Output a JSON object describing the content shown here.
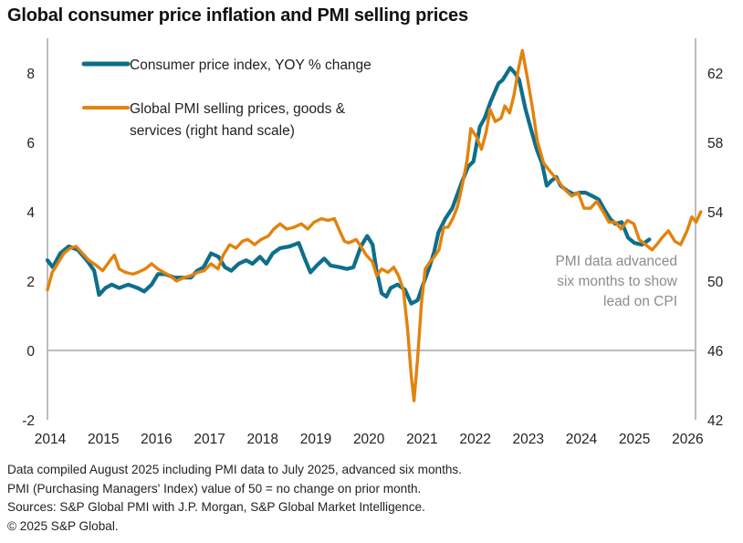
{
  "chart_data": {
    "type": "line",
    "title": "Global consumer price inflation and PMI selling prices",
    "xlabel": "",
    "ylabel_left": "",
    "ylabel_right": "",
    "x_ticks": [
      "2014",
      "2015",
      "2016",
      "2017",
      "2018",
      "2019",
      "2020",
      "2021",
      "2022",
      "2023",
      "2024",
      "2025",
      "2026"
    ],
    "x_range": [
      2014.0,
      2026.2
    ],
    "y_left_range": [
      -2,
      9
    ],
    "y_left_ticks": [
      "-2",
      "0",
      "2",
      "4",
      "6",
      "8"
    ],
    "y_right_range": [
      42,
      64
    ],
    "y_right_ticks": [
      "42",
      "46",
      "50",
      "54",
      "58",
      "62"
    ],
    "grid": false,
    "legend_placement": "top-left",
    "series": [
      {
        "name": "Consumer price index, YOY % change",
        "axis": "left",
        "color": "#0E6F8A",
        "points": [
          [
            2014.0,
            2.6
          ],
          [
            2014.1,
            2.4
          ],
          [
            2014.24,
            2.8
          ],
          [
            2014.4,
            3.0
          ],
          [
            2014.57,
            2.9
          ],
          [
            2014.74,
            2.6
          ],
          [
            2014.88,
            2.3
          ],
          [
            2014.97,
            1.6
          ],
          [
            2015.09,
            1.8
          ],
          [
            2015.21,
            1.9
          ],
          [
            2015.35,
            1.8
          ],
          [
            2015.52,
            1.9
          ],
          [
            2015.7,
            1.8
          ],
          [
            2015.82,
            1.7
          ],
          [
            2015.96,
            1.9
          ],
          [
            2016.08,
            2.2
          ],
          [
            2016.22,
            2.2
          ],
          [
            2016.39,
            2.1
          ],
          [
            2016.56,
            2.1
          ],
          [
            2016.7,
            2.1
          ],
          [
            2016.82,
            2.3
          ],
          [
            2016.94,
            2.4
          ],
          [
            2017.08,
            2.8
          ],
          [
            2017.22,
            2.7
          ],
          [
            2017.34,
            2.4
          ],
          [
            2017.46,
            2.3
          ],
          [
            2017.6,
            2.5
          ],
          [
            2017.74,
            2.6
          ],
          [
            2017.86,
            2.5
          ],
          [
            2018.0,
            2.7
          ],
          [
            2018.12,
            2.5
          ],
          [
            2018.24,
            2.8
          ],
          [
            2018.38,
            2.95
          ],
          [
            2018.56,
            3.0
          ],
          [
            2018.73,
            3.1
          ],
          [
            2018.83,
            2.7
          ],
          [
            2018.95,
            2.25
          ],
          [
            2019.07,
            2.45
          ],
          [
            2019.21,
            2.65
          ],
          [
            2019.33,
            2.45
          ],
          [
            2019.5,
            2.4
          ],
          [
            2019.64,
            2.35
          ],
          [
            2019.76,
            2.4
          ],
          [
            2019.9,
            3.0
          ],
          [
            2020.02,
            3.3
          ],
          [
            2020.12,
            3.05
          ],
          [
            2020.19,
            2.35
          ],
          [
            2020.29,
            1.65
          ],
          [
            2020.38,
            1.55
          ],
          [
            2020.46,
            1.8
          ],
          [
            2020.59,
            1.9
          ],
          [
            2020.73,
            1.75
          ],
          [
            2020.85,
            1.35
          ],
          [
            2020.97,
            1.45
          ],
          [
            2021.07,
            1.9
          ],
          [
            2021.19,
            2.4
          ],
          [
            2021.28,
            2.85
          ],
          [
            2021.36,
            3.4
          ],
          [
            2021.49,
            3.8
          ],
          [
            2021.62,
            4.1
          ],
          [
            2021.8,
            4.85
          ],
          [
            2021.92,
            5.3
          ],
          [
            2022.02,
            5.45
          ],
          [
            2022.14,
            6.45
          ],
          [
            2022.23,
            6.7
          ],
          [
            2022.35,
            7.2
          ],
          [
            2022.49,
            7.7
          ],
          [
            2022.57,
            7.8
          ],
          [
            2022.71,
            8.15
          ],
          [
            2022.8,
            8.0
          ],
          [
            2022.88,
            7.8
          ],
          [
            2023.0,
            6.95
          ],
          [
            2023.09,
            6.45
          ],
          [
            2023.21,
            5.8
          ],
          [
            2023.31,
            5.4
          ],
          [
            2023.4,
            4.75
          ],
          [
            2023.49,
            4.9
          ],
          [
            2023.58,
            5.0
          ],
          [
            2023.66,
            4.75
          ],
          [
            2023.79,
            4.6
          ],
          [
            2023.91,
            4.5
          ],
          [
            2024.01,
            4.55
          ],
          [
            2024.13,
            4.55
          ],
          [
            2024.26,
            4.45
          ],
          [
            2024.38,
            4.35
          ],
          [
            2024.47,
            4.1
          ],
          [
            2024.59,
            3.8
          ],
          [
            2024.69,
            3.65
          ],
          [
            2024.81,
            3.7
          ],
          [
            2024.93,
            3.25
          ],
          [
            2025.05,
            3.1
          ],
          [
            2025.19,
            3.05
          ],
          [
            2025.33,
            3.2
          ]
        ]
      },
      {
        "name": "Global PMI selling prices, goods & services (right hand scale)",
        "axis": "right",
        "color": "#E3820C",
        "points": [
          [
            2014.0,
            49.5
          ],
          [
            2014.09,
            50.5
          ],
          [
            2014.19,
            51.0
          ],
          [
            2014.31,
            51.6
          ],
          [
            2014.43,
            51.9
          ],
          [
            2014.54,
            52.0
          ],
          [
            2014.66,
            51.6
          ],
          [
            2014.78,
            51.2
          ],
          [
            2014.92,
            50.9
          ],
          [
            2015.04,
            50.6
          ],
          [
            2015.18,
            51.2
          ],
          [
            2015.26,
            51.5
          ],
          [
            2015.35,
            50.7
          ],
          [
            2015.47,
            50.5
          ],
          [
            2015.61,
            50.4
          ],
          [
            2015.7,
            50.5
          ],
          [
            2015.84,
            50.7
          ],
          [
            2015.96,
            51.0
          ],
          [
            2016.08,
            50.7
          ],
          [
            2016.19,
            50.5
          ],
          [
            2016.31,
            50.3
          ],
          [
            2016.43,
            50.0
          ],
          [
            2016.57,
            50.2
          ],
          [
            2016.69,
            50.3
          ],
          [
            2016.83,
            50.5
          ],
          [
            2016.95,
            50.6
          ],
          [
            2017.08,
            51.0
          ],
          [
            2017.21,
            50.7
          ],
          [
            2017.31,
            51.5
          ],
          [
            2017.43,
            52.1
          ],
          [
            2017.55,
            51.9
          ],
          [
            2017.67,
            52.3
          ],
          [
            2017.77,
            52.4
          ],
          [
            2017.9,
            52.1
          ],
          [
            2018.02,
            52.4
          ],
          [
            2018.16,
            52.6
          ],
          [
            2018.26,
            53.0
          ],
          [
            2018.38,
            53.3
          ],
          [
            2018.5,
            53.0
          ],
          [
            2018.64,
            53.1
          ],
          [
            2018.78,
            53.3
          ],
          [
            2018.9,
            53.0
          ],
          [
            2019.02,
            53.4
          ],
          [
            2019.16,
            53.6
          ],
          [
            2019.28,
            53.5
          ],
          [
            2019.4,
            53.6
          ],
          [
            2019.5,
            52.9
          ],
          [
            2019.59,
            52.3
          ],
          [
            2019.67,
            52.2
          ],
          [
            2019.81,
            52.4
          ],
          [
            2019.9,
            52.0
          ],
          [
            2020.0,
            51.5
          ],
          [
            2020.12,
            51.1
          ],
          [
            2020.2,
            50.3
          ],
          [
            2020.29,
            50.7
          ],
          [
            2020.41,
            50.5
          ],
          [
            2020.52,
            50.8
          ],
          [
            2020.61,
            50.3
          ],
          [
            2020.7,
            49.5
          ],
          [
            2020.78,
            47.2
          ],
          [
            2020.85,
            44.5
          ],
          [
            2020.9,
            43.1
          ],
          [
            2020.97,
            45.6
          ],
          [
            2021.04,
            48.7
          ],
          [
            2021.11,
            50.7
          ],
          [
            2021.2,
            51.1
          ],
          [
            2021.28,
            51.4
          ],
          [
            2021.37,
            51.8
          ],
          [
            2021.46,
            53.1
          ],
          [
            2021.54,
            53.1
          ],
          [
            2021.63,
            53.6
          ],
          [
            2021.72,
            54.3
          ],
          [
            2021.82,
            55.7
          ],
          [
            2021.9,
            57.0
          ],
          [
            2021.97,
            58.8
          ],
          [
            2022.08,
            58.3
          ],
          [
            2022.17,
            57.6
          ],
          [
            2022.26,
            58.6
          ],
          [
            2022.33,
            59.9
          ],
          [
            2022.43,
            59.2
          ],
          [
            2022.54,
            59.4
          ],
          [
            2022.61,
            60.1
          ],
          [
            2022.7,
            59.7
          ],
          [
            2022.78,
            60.7
          ],
          [
            2022.87,
            62.3
          ],
          [
            2022.94,
            63.3
          ],
          [
            2023.03,
            61.8
          ],
          [
            2023.13,
            60.0
          ],
          [
            2023.22,
            58.1
          ],
          [
            2023.34,
            56.8
          ],
          [
            2023.47,
            56.3
          ],
          [
            2023.61,
            55.8
          ],
          [
            2023.73,
            55.3
          ],
          [
            2023.87,
            54.9
          ],
          [
            2023.99,
            55.1
          ],
          [
            2024.1,
            54.2
          ],
          [
            2024.22,
            54.2
          ],
          [
            2024.34,
            54.6
          ],
          [
            2024.48,
            53.9
          ],
          [
            2024.57,
            53.4
          ],
          [
            2024.69,
            53.4
          ],
          [
            2024.8,
            53.0
          ],
          [
            2024.92,
            53.5
          ],
          [
            2025.04,
            53.3
          ],
          [
            2025.14,
            52.4
          ],
          [
            2025.26,
            52.1
          ],
          [
            2025.38,
            51.8
          ],
          [
            2025.47,
            52.1
          ],
          [
            2025.57,
            52.5
          ],
          [
            2025.69,
            52.9
          ],
          [
            2025.81,
            52.3
          ],
          [
            2025.92,
            52.1
          ],
          [
            2026.04,
            52.9
          ],
          [
            2026.13,
            53.7
          ],
          [
            2026.21,
            53.4
          ],
          [
            2026.3,
            54.0
          ]
        ]
      }
    ],
    "legend": [
      {
        "label_lines": [
          "Consumer price index, YOY % change"
        ],
        "color": "#0E6F8A"
      },
      {
        "label_lines": [
          "Global PMI selling prices, goods &",
          "services (right hand scale)"
        ],
        "color": "#E3820C"
      }
    ],
    "annotations": [
      {
        "lines": [
          "PMI data advanced",
          "six months to show",
          "lead on CPI"
        ],
        "color": "#8c8c8c",
        "placement": "lower-right"
      }
    ],
    "reference_line": {
      "axis": "left",
      "value": 0
    }
  },
  "footer": {
    "line1": "Data compiled August 2025 including PMI data to July 2025, advanced six months.",
    "line2": "PMI (Purchasing Managers' Index) value of 50 = no change on prior month.",
    "line3": "Sources: S&P Global PMI with J.P. Morgan, S&P Global Market Intelligence.",
    "line4": "© 2025 S&P Global."
  }
}
